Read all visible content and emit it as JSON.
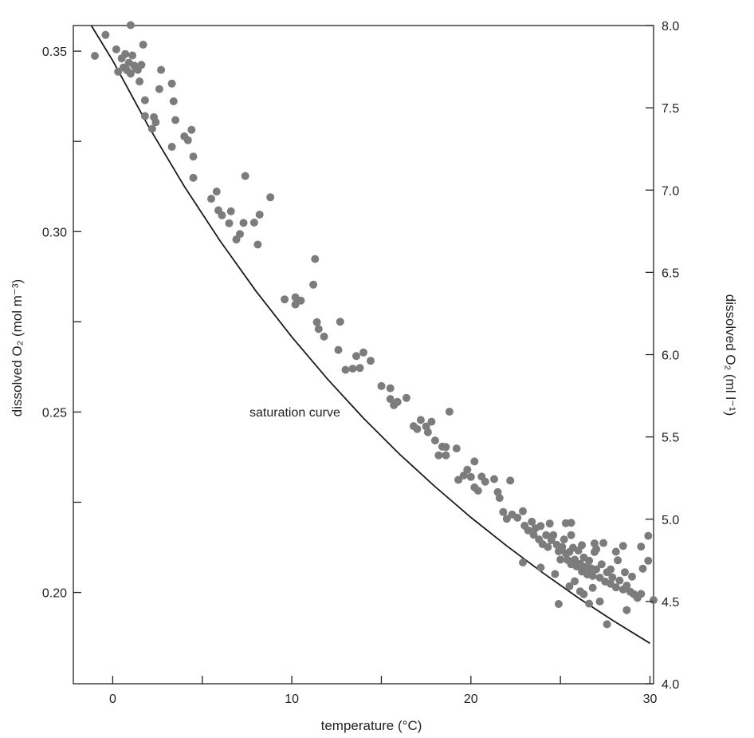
{
  "chart_data": {
    "type": "scatter",
    "title": "",
    "xlabel": "temperature (°C)",
    "ylabel_left": "dissolved O₂ (mol m⁻³)",
    "ylabel_right": "dissolved O₂ (ml l⁻¹)",
    "xlim": [
      -2.2,
      30.2
    ],
    "ylim_left": [
      0.1747,
      0.3571
    ],
    "ylim_right": [
      4.0,
      8.0
    ],
    "x_ticks": [
      0,
      5,
      10,
      15,
      20,
      25,
      30
    ],
    "x_tick_labels": [
      "0",
      "",
      "10",
      "",
      "20",
      "",
      "30"
    ],
    "y_left_ticks": [
      0.2,
      0.225,
      0.25,
      0.275,
      0.3,
      0.325,
      0.35
    ],
    "y_left_tick_labels": [
      "0.20",
      "",
      "0.25",
      "",
      "0.30",
      "",
      "0.35"
    ],
    "y_right_ticks": [
      4.0,
      4.5,
      5.0,
      5.5,
      6.0,
      6.5,
      7.0,
      7.5,
      8.0
    ],
    "y_right_tick_labels": [
      "4.0",
      "4.5",
      "5.0",
      "5.5",
      "6.0",
      "6.5",
      "7.0",
      "7.5",
      "8.0"
    ],
    "grid": false,
    "legend": "none",
    "annotations": [
      {
        "text": "saturation curve",
        "x": 13.5,
        "y": 0.252
      }
    ],
    "saturation_curve": {
      "x": [
        -1.2,
        0,
        2,
        4,
        6,
        8,
        10,
        12,
        14,
        16,
        18,
        20,
        22,
        24,
        26,
        28,
        30
      ],
      "y": [
        0.3571,
        0.3474,
        0.3291,
        0.3125,
        0.2974,
        0.2835,
        0.2708,
        0.2591,
        0.2483,
        0.2384,
        0.2293,
        0.2208,
        0.2129,
        0.2055,
        0.1985,
        0.192,
        0.1859
      ]
    },
    "points": [
      [
        -1.0,
        0.3487
      ],
      [
        -0.4,
        0.3545
      ],
      [
        0.2,
        0.3505
      ],
      [
        0.3,
        0.3443
      ],
      [
        0.5,
        0.348
      ],
      [
        0.6,
        0.3455
      ],
      [
        0.7,
        0.3492
      ],
      [
        0.8,
        0.3447
      ],
      [
        0.9,
        0.3468
      ],
      [
        1.0,
        0.3438
      ],
      [
        1.0,
        0.3572
      ],
      [
        1.1,
        0.3488
      ],
      [
        1.2,
        0.346
      ],
      [
        1.3,
        0.3453
      ],
      [
        1.4,
        0.3448
      ],
      [
        1.5,
        0.3416
      ],
      [
        1.6,
        0.3462
      ],
      [
        1.7,
        0.3518
      ],
      [
        1.8,
        0.3364
      ],
      [
        1.8,
        0.332
      ],
      [
        2.2,
        0.3285
      ],
      [
        2.3,
        0.3317
      ],
      [
        2.4,
        0.3303
      ],
      [
        2.6,
        0.3395
      ],
      [
        2.7,
        0.3448
      ],
      [
        3.3,
        0.341
      ],
      [
        3.3,
        0.3235
      ],
      [
        3.4,
        0.3361
      ],
      [
        3.5,
        0.3309
      ],
      [
        4.0,
        0.3264
      ],
      [
        4.2,
        0.3253
      ],
      [
        4.4,
        0.3282
      ],
      [
        4.5,
        0.3208
      ],
      [
        4.5,
        0.3149
      ],
      [
        5.5,
        0.3091
      ],
      [
        5.8,
        0.3111
      ],
      [
        5.9,
        0.3059
      ],
      [
        6.1,
        0.3045
      ],
      [
        6.5,
        0.3023
      ],
      [
        6.6,
        0.3056
      ],
      [
        6.9,
        0.2978
      ],
      [
        7.1,
        0.2993
      ],
      [
        7.3,
        0.3024
      ],
      [
        7.4,
        0.3154
      ],
      [
        7.9,
        0.3025
      ],
      [
        8.1,
        0.2964
      ],
      [
        8.2,
        0.3047
      ],
      [
        8.8,
        0.3095
      ],
      [
        9.6,
        0.2812
      ],
      [
        10.2,
        0.2798
      ],
      [
        10.2,
        0.2818
      ],
      [
        10.5,
        0.2809
      ],
      [
        11.2,
        0.2853
      ],
      [
        11.3,
        0.2924
      ],
      [
        11.4,
        0.2749
      ],
      [
        11.5,
        0.273
      ],
      [
        11.8,
        0.2709
      ],
      [
        12.6,
        0.2672
      ],
      [
        12.7,
        0.275
      ],
      [
        13.0,
        0.2617
      ],
      [
        13.4,
        0.262
      ],
      [
        13.6,
        0.2655
      ],
      [
        13.8,
        0.2622
      ],
      [
        14.0,
        0.2665
      ],
      [
        14.4,
        0.2642
      ],
      [
        15.0,
        0.2572
      ],
      [
        15.5,
        0.2566
      ],
      [
        15.5,
        0.2536
      ],
      [
        15.7,
        0.2519
      ],
      [
        15.9,
        0.2528
      ],
      [
        16.4,
        0.2539
      ],
      [
        16.8,
        0.2461
      ],
      [
        17.0,
        0.2453
      ],
      [
        17.2,
        0.2478
      ],
      [
        17.5,
        0.246
      ],
      [
        17.6,
        0.2444
      ],
      [
        17.8,
        0.2473
      ],
      [
        18.0,
        0.2421
      ],
      [
        18.2,
        0.238
      ],
      [
        18.4,
        0.2404
      ],
      [
        18.6,
        0.238
      ],
      [
        18.6,
        0.2403
      ],
      [
        18.8,
        0.2501
      ],
      [
        19.2,
        0.2399
      ],
      [
        19.3,
        0.2312
      ],
      [
        19.6,
        0.2324
      ],
      [
        19.8,
        0.234
      ],
      [
        20.0,
        0.232
      ],
      [
        20.2,
        0.2291
      ],
      [
        20.2,
        0.2363
      ],
      [
        20.4,
        0.2282
      ],
      [
        20.6,
        0.2321
      ],
      [
        20.8,
        0.2307
      ],
      [
        21.3,
        0.2314
      ],
      [
        21.5,
        0.2278
      ],
      [
        21.6,
        0.2262
      ],
      [
        21.8,
        0.2223
      ],
      [
        22.0,
        0.2204
      ],
      [
        22.2,
        0.231
      ],
      [
        22.3,
        0.2216
      ],
      [
        22.6,
        0.2207
      ],
      [
        22.9,
        0.2225
      ],
      [
        23.0,
        0.2185
      ],
      [
        23.2,
        0.2172
      ],
      [
        23.4,
        0.2196
      ],
      [
        23.5,
        0.216
      ],
      [
        23.6,
        0.2178
      ],
      [
        23.8,
        0.2147
      ],
      [
        23.9,
        0.2184
      ],
      [
        24.0,
        0.2134
      ],
      [
        24.2,
        0.2159
      ],
      [
        24.3,
        0.2126
      ],
      [
        24.5,
        0.2145
      ],
      [
        24.6,
        0.2159
      ],
      [
        24.8,
        0.2132
      ],
      [
        24.9,
        0.2114
      ],
      [
        25.0,
        0.2091
      ],
      [
        25.1,
        0.2126
      ],
      [
        25.2,
        0.2147
      ],
      [
        25.3,
        0.2108
      ],
      [
        25.4,
        0.209
      ],
      [
        25.5,
        0.2112
      ],
      [
        25.6,
        0.2078
      ],
      [
        25.7,
        0.2124
      ],
      [
        25.8,
        0.2091
      ],
      [
        25.9,
        0.2072
      ],
      [
        26.0,
        0.2116
      ],
      [
        26.1,
        0.2079
      ],
      [
        26.2,
        0.2058
      ],
      [
        26.3,
        0.2097
      ],
      [
        26.4,
        0.2071
      ],
      [
        26.5,
        0.205
      ],
      [
        26.6,
        0.2088
      ],
      [
        26.7,
        0.2067
      ],
      [
        26.8,
        0.2046
      ],
      [
        26.9,
        0.2112
      ],
      [
        27.0,
        0.2064
      ],
      [
        27.2,
        0.2041
      ],
      [
        27.3,
        0.2078
      ],
      [
        27.5,
        0.203
      ],
      [
        27.6,
        0.2056
      ],
      [
        27.8,
        0.2024
      ],
      [
        27.9,
        0.2042
      ],
      [
        28.1,
        0.2014
      ],
      [
        28.3,
        0.2033
      ],
      [
        28.5,
        0.2008
      ],
      [
        28.7,
        0.2019
      ],
      [
        28.9,
        0.2002
      ],
      [
        29.1,
        0.1995
      ],
      [
        29.3,
        0.1985
      ],
      [
        29.5,
        0.1996
      ],
      [
        24.9,
        0.1968
      ],
      [
        26.3,
        0.1995
      ],
      [
        26.6,
        0.1969
      ],
      [
        27.2,
        0.1975
      ],
      [
        27.6,
        0.1912
      ],
      [
        28.7,
        0.1951
      ],
      [
        29.0,
        0.2044
      ],
      [
        29.6,
        0.2066
      ],
      [
        29.9,
        0.2088
      ],
      [
        29.9,
        0.2157
      ],
      [
        30.2,
        0.1979
      ],
      [
        28.5,
        0.2129
      ],
      [
        29.5,
        0.2127
      ],
      [
        25.6,
        0.2159
      ],
      [
        26.9,
        0.2136
      ],
      [
        27.8,
        0.2064
      ],
      [
        28.2,
        0.2089
      ],
      [
        28.6,
        0.2056
      ],
      [
        24.4,
        0.2191
      ],
      [
        25.3,
        0.2192
      ],
      [
        25.6,
        0.2193
      ],
      [
        26.2,
        0.2131
      ],
      [
        27.0,
        0.212
      ],
      [
        27.4,
        0.2137
      ],
      [
        28.1,
        0.2113
      ],
      [
        26.1,
        0.2003
      ],
      [
        25.8,
        0.2031
      ],
      [
        26.8,
        0.2013
      ],
      [
        23.9,
        0.2069
      ],
      [
        22.9,
        0.2083
      ],
      [
        24.7,
        0.2051
      ],
      [
        25.5,
        0.2017
      ]
    ]
  }
}
